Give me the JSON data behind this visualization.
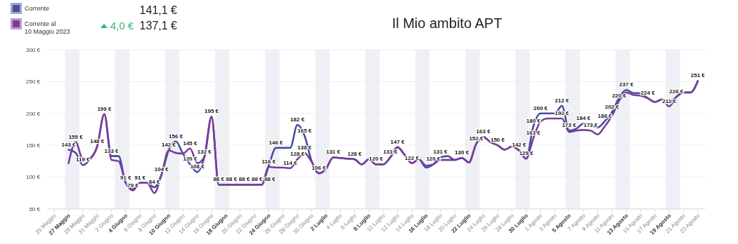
{
  "chart_data": {
    "type": "line",
    "title": "Il Mio ambito APT",
    "x": [
      "2023-05-27",
      "2023-05-28",
      "2023-05-29",
      "2023-05-30",
      "2023-05-31",
      "2023-06-01",
      "2023-06-02",
      "2023-06-03",
      "2023-06-04",
      "2023-06-05",
      "2023-06-06",
      "2023-06-07",
      "2023-06-08",
      "2023-06-09",
      "2023-06-10",
      "2023-06-11",
      "2023-06-12",
      "2023-06-13",
      "2023-06-14",
      "2023-06-15",
      "2023-06-16",
      "2023-06-17",
      "2023-06-18",
      "2023-06-19",
      "2023-06-20",
      "2023-06-21",
      "2023-06-22",
      "2023-06-23",
      "2023-06-24",
      "2023-06-25",
      "2023-06-26",
      "2023-06-27",
      "2023-06-28",
      "2023-06-29",
      "2023-06-30",
      "2023-07-01",
      "2023-07-02",
      "2023-07-03",
      "2023-07-04",
      "2023-07-05",
      "2023-07-06",
      "2023-07-07",
      "2023-07-08",
      "2023-07-09",
      "2023-07-10",
      "2023-07-11",
      "2023-07-12",
      "2023-07-13",
      "2023-07-14",
      "2023-07-15",
      "2023-07-16",
      "2023-07-17",
      "2023-07-18",
      "2023-07-19",
      "2023-07-20",
      "2023-07-21",
      "2023-07-22",
      "2023-07-23",
      "2023-07-24",
      "2023-07-25",
      "2023-07-26",
      "2023-07-27",
      "2023-07-28",
      "2023-07-29",
      "2023-07-30",
      "2023-07-31",
      "2023-08-01",
      "2023-08-02",
      "2023-08-03",
      "2023-08-04",
      "2023-08-05",
      "2023-08-06",
      "2023-08-07",
      "2023-08-08",
      "2023-08-09",
      "2023-08-10",
      "2023-08-11",
      "2023-08-12",
      "2023-08-13",
      "2023-08-14",
      "2023-08-15",
      "2023-08-16",
      "2023-08-17",
      "2023-08-18",
      "2023-08-19",
      "2023-08-20",
      "2023-08-21",
      "2023-08-22",
      "2023-08-23"
    ],
    "series": [
      {
        "name": "Corrente",
        "color": "#454fa0",
        "values": [
          143,
          138,
          119,
          128,
          148,
          199,
          133,
          133,
          91,
          81,
          91,
          91,
          84,
          104,
          142,
          156,
          137,
          120,
          108,
          132,
          195,
          88,
          88,
          88,
          88,
          88,
          88,
          88,
          118,
          146,
          146,
          146,
          182,
          165,
          125,
          106,
          113,
          131,
          130,
          129,
          128,
          120,
          128,
          120,
          120,
          131,
          147,
          135,
          122,
          128,
          115,
          120,
          131,
          133,
          127,
          130,
          123,
          152,
          163,
          155,
          150,
          143,
          148,
          142,
          129,
          180,
          200,
          200,
          200,
          212,
          173,
          176,
          184,
          182,
          178,
          188,
          202,
          225,
          237,
          232,
          232,
          224,
          218,
          222,
          217,
          226,
          233,
          233,
          251
        ],
        "value_labels": [
          "143 €",
          null,
          "119 €",
          null,
          "148 €",
          null,
          "133 €",
          null,
          "91 €",
          null,
          null,
          null,
          "84 €",
          "104 €",
          null,
          "156 €",
          null,
          "120 €",
          "108 €",
          null,
          null,
          null,
          null,
          null,
          null,
          null,
          null,
          null,
          null,
          "146 €",
          null,
          null,
          "182 €",
          "165 €",
          null,
          null,
          null,
          "131 €",
          null,
          null,
          "128 €",
          null,
          null,
          "120 €",
          null,
          "131 €",
          null,
          null,
          "122 €",
          null,
          null,
          null,
          "131 €",
          null,
          null,
          "130 €",
          null,
          "152 €",
          null,
          null,
          "150 €",
          null,
          null,
          "142 €",
          null,
          "180 €",
          "200 €",
          null,
          null,
          "212 €",
          "173 €",
          null,
          "184 €",
          null,
          null,
          "188 €",
          "202 €",
          null,
          "237 €",
          null,
          null,
          "224 €",
          null,
          null,
          null,
          null,
          null,
          null,
          null
        ]
      },
      {
        "name": "Corrente al\n10 Maggio 2023",
        "color": "#7a3d99",
        "values": [
          122,
          155,
          128,
          130,
          148,
          199,
          127,
          125,
          91,
          79,
          91,
          91,
          75,
          104,
          142,
          138,
          137,
          145,
          122,
          132,
          195,
          88,
          88,
          88,
          88,
          88,
          88,
          88,
          116,
          115,
          115,
          114,
          128,
          138,
          124,
          106,
          113,
          131,
          130,
          129,
          128,
          120,
          128,
          120,
          120,
          131,
          147,
          135,
          122,
          128,
          118,
          120,
          127,
          127,
          127,
          130,
          123,
          152,
          163,
          155,
          150,
          143,
          148,
          142,
          129,
          161,
          187,
          192,
          192,
          192,
          171,
          173,
          174,
          173,
          167,
          180,
          196,
          220,
          233,
          229,
          228,
          224,
          218,
          222,
          211,
          226,
          233,
          233,
          251
        ],
        "value_labels": [
          null,
          "155 €",
          null,
          null,
          null,
          "199 €",
          null,
          null,
          null,
          "79 €",
          "91 €",
          null,
          null,
          null,
          "142 €",
          null,
          null,
          "145 €",
          null,
          "132 €",
          "195 €",
          "88 €",
          "88 €",
          null,
          "88 €",
          "88 €",
          null,
          "88 €",
          "116 €",
          null,
          null,
          "114 €",
          "128 €",
          "138 €",
          null,
          "106 €",
          null,
          null,
          null,
          null,
          null,
          null,
          null,
          null,
          null,
          null,
          "147 €",
          null,
          null,
          null,
          null,
          "120 €",
          null,
          null,
          null,
          null,
          null,
          null,
          "163 €",
          null,
          null,
          null,
          null,
          null,
          "129 €",
          "161 €",
          null,
          null,
          null,
          "192 €",
          null,
          null,
          null,
          "173 €",
          null,
          null,
          null,
          "220 €",
          null,
          null,
          null,
          null,
          null,
          null,
          "211 €",
          "226 €",
          null,
          null,
          "251 €"
        ]
      }
    ],
    "xlim": [
      "2023-05-24",
      "2023-08-24"
    ],
    "xticks": [
      {
        "value": "2023-05-25",
        "label": "25 Maggio"
      },
      {
        "value": "2023-05-27",
        "label": "27 Maggio"
      },
      {
        "value": "2023-05-29",
        "label": "29 Maggio"
      },
      {
        "value": "2023-05-31",
        "label": "31 Maggio"
      },
      {
        "value": "2023-06-02",
        "label": "2 Giugno"
      },
      {
        "value": "2023-06-04",
        "label": "4 Giugno"
      },
      {
        "value": "2023-06-06",
        "label": "6 Giugno"
      },
      {
        "value": "2023-06-08",
        "label": "8 Giugno"
      },
      {
        "value": "2023-06-10",
        "label": "10 Giugno"
      },
      {
        "value": "2023-06-12",
        "label": "12 Giugno"
      },
      {
        "value": "2023-06-14",
        "label": "14 Giugno"
      },
      {
        "value": "2023-06-16",
        "label": "16 Giugno"
      },
      {
        "value": "2023-06-18",
        "label": "18 Giugno"
      },
      {
        "value": "2023-06-20",
        "label": "20 Giugno"
      },
      {
        "value": "2023-06-22",
        "label": "22 Giugno"
      },
      {
        "value": "2023-06-24",
        "label": "24 Giugno"
      },
      {
        "value": "2023-06-26",
        "label": "26 Giugno"
      },
      {
        "value": "2023-06-28",
        "label": "28 Giugno"
      },
      {
        "value": "2023-06-30",
        "label": "30 Giugno"
      },
      {
        "value": "2023-07-02",
        "label": "2 Luglio"
      },
      {
        "value": "2023-07-04",
        "label": "4 Luglio"
      },
      {
        "value": "2023-07-06",
        "label": "6 Luglio"
      },
      {
        "value": "2023-07-08",
        "label": "8 Luglio"
      },
      {
        "value": "2023-07-10",
        "label": "10 Luglio"
      },
      {
        "value": "2023-07-12",
        "label": "12 Luglio"
      },
      {
        "value": "2023-07-14",
        "label": "14 Luglio"
      },
      {
        "value": "2023-07-16",
        "label": "16 Luglio"
      },
      {
        "value": "2023-07-18",
        "label": "18 Luglio"
      },
      {
        "value": "2023-07-20",
        "label": "20 Luglio"
      },
      {
        "value": "2023-07-22",
        "label": "22 Luglio"
      },
      {
        "value": "2023-07-24",
        "label": "24 Luglio"
      },
      {
        "value": "2023-07-26",
        "label": "26 Luglio"
      },
      {
        "value": "2023-07-28",
        "label": "28 Luglio"
      },
      {
        "value": "2023-07-30",
        "label": "30 Luglio"
      },
      {
        "value": "2023-08-01",
        "label": "1 Agosto"
      },
      {
        "value": "2023-08-03",
        "label": "3 Agosto"
      },
      {
        "value": "2023-08-05",
        "label": "5 Agosto"
      },
      {
        "value": "2023-08-07",
        "label": "7 Agosto"
      },
      {
        "value": "2023-08-09",
        "label": "9 Agosto"
      },
      {
        "value": "2023-08-11",
        "label": "11 Agosto"
      },
      {
        "value": "2023-08-13",
        "label": "13 Agosto"
      },
      {
        "value": "2023-08-15",
        "label": "15 Agosto"
      },
      {
        "value": "2023-08-17",
        "label": "17 Agosto"
      },
      {
        "value": "2023-08-19",
        "label": "19 Agosto"
      },
      {
        "value": "2023-08-21",
        "label": "21 Agosto"
      },
      {
        "value": "2023-08-23",
        "label": "23 Agosto"
      }
    ],
    "ylim": [
      50,
      300
    ],
    "yticks": [
      {
        "value": 50,
        "label": "50 €"
      },
      {
        "value": 100,
        "label": "100 €"
      },
      {
        "value": 150,
        "label": "150 €"
      },
      {
        "value": 200,
        "label": "200 €"
      },
      {
        "value": 250,
        "label": "250 €"
      },
      {
        "value": 300,
        "label": "300 €"
      }
    ],
    "grid": "y",
    "legend": "top left",
    "marker": "none",
    "line_style": "solid",
    "bands": [
      {
        "axis": "x",
        "from": "2023-05-26T12:00",
        "to": "2023-05-28T12:00",
        "color": "#eef0f6"
      },
      {
        "axis": "x",
        "from": "2023-06-02T12:00",
        "to": "2023-06-04T12:00",
        "color": "#eef0f6"
      },
      {
        "axis": "x",
        "from": "2023-06-09T12:00",
        "to": "2023-06-11T12:00",
        "color": "#eef0f6"
      },
      {
        "axis": "x",
        "from": "2023-06-16T12:00",
        "to": "2023-06-18T12:00",
        "color": "#eef0f6"
      },
      {
        "axis": "x",
        "from": "2023-06-23T12:00",
        "to": "2023-06-25T12:00",
        "color": "#eef0f6"
      },
      {
        "axis": "x",
        "from": "2023-06-30T12:00",
        "to": "2023-07-02T12:00",
        "color": "#eef0f6"
      },
      {
        "axis": "x",
        "from": "2023-07-07T12:00",
        "to": "2023-07-09T12:00",
        "color": "#eef0f6"
      },
      {
        "axis": "x",
        "from": "2023-07-14T12:00",
        "to": "2023-07-16T12:00",
        "color": "#eef0f6"
      },
      {
        "axis": "x",
        "from": "2023-07-21T12:00",
        "to": "2023-07-23T12:00",
        "color": "#eef0f6"
      },
      {
        "axis": "x",
        "from": "2023-07-28T12:00",
        "to": "2023-07-30T12:00",
        "color": "#eef0f6"
      },
      {
        "axis": "x",
        "from": "2023-08-04T12:00",
        "to": "2023-08-06T12:00",
        "color": "#eef0f6"
      },
      {
        "axis": "x",
        "from": "2023-08-11T12:00",
        "to": "2023-08-13T12:00",
        "color": "#eef0f6"
      },
      {
        "axis": "x",
        "from": "2023-08-18T12:00",
        "to": "2023-08-20T12:00",
        "color": "#eef0f6"
      }
    ],
    "annotations": [
      "141,1 €",
      "4,0 €",
      "137,1 €"
    ]
  }
}
